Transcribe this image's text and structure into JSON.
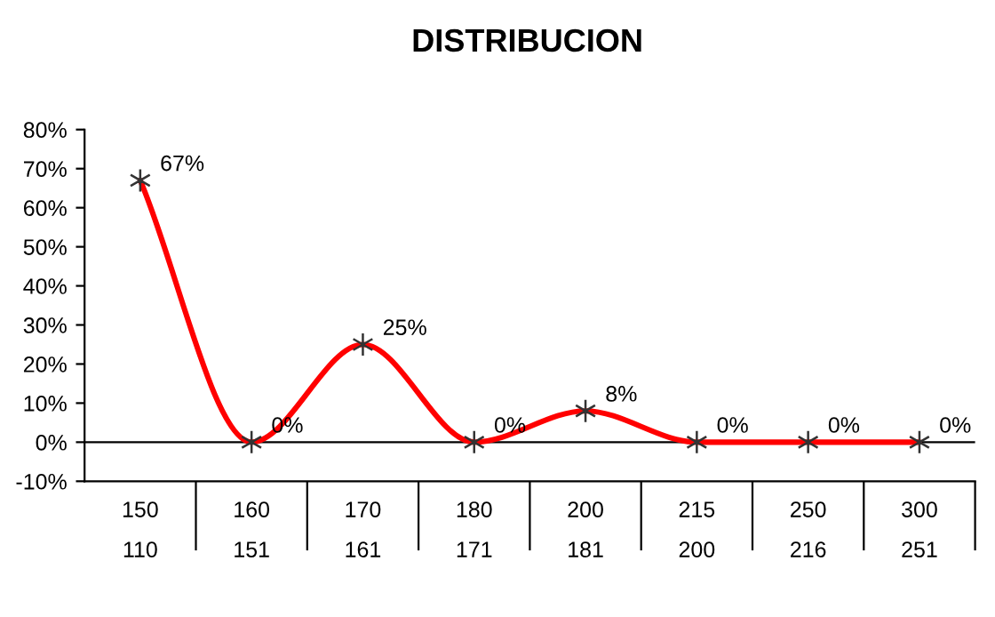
{
  "chart_data": {
    "type": "line",
    "title": "DISTRIBUCION",
    "categories": [
      "150\n110",
      "160\n151",
      "170\n161",
      "180\n171",
      "200\n181",
      "215\n200",
      "250\n216",
      "300\n251"
    ],
    "series": [
      {
        "color": "#ff0000",
        "values": [
          67,
          0,
          25,
          0,
          8,
          0,
          0,
          0
        ],
        "value_labels": [
          "67%",
          "0%",
          "25%",
          "0%",
          "8%",
          "0%",
          "0%",
          "0%"
        ]
      }
    ],
    "ylim": [
      -10,
      80
    ],
    "yticks": [
      {
        "value": -10,
        "label": "-10%"
      },
      {
        "value": 0,
        "label": "0%"
      },
      {
        "value": 10,
        "label": "10%"
      },
      {
        "value": 20,
        "label": "20%"
      },
      {
        "value": 30,
        "label": "30%"
      },
      {
        "value": 40,
        "label": "40%"
      },
      {
        "value": 50,
        "label": "50%"
      },
      {
        "value": 60,
        "label": "60%"
      },
      {
        "value": 70,
        "label": "70%"
      },
      {
        "value": 80,
        "label": "80%"
      }
    ],
    "ref_lines": [
      {
        "axis": "y",
        "value": 0,
        "color": "#000000"
      }
    ],
    "marker": "cross",
    "grid": false,
    "legend": false
  }
}
